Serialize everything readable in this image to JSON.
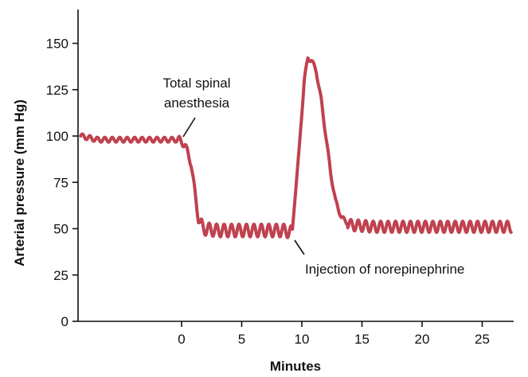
{
  "chart_data": {
    "type": "line",
    "title": "",
    "xlabel": "Minutes",
    "ylabel": "Arterial pressure (mm Hg)",
    "xlim": [
      -8.5,
      27.8
    ],
    "ylim": [
      0,
      170
    ],
    "x_ticks": [
      0,
      5,
      10,
      15,
      20,
      25
    ],
    "y_ticks": [
      0,
      25,
      50,
      75,
      100,
      125,
      150
    ],
    "grid": false,
    "legend": "none",
    "series_color": "#c0414f",
    "series": [
      {
        "x": [
          -8.4,
          -7,
          -5,
          -3,
          -1,
          -0.2,
          0.3,
          0.8,
          1.1,
          1.4,
          1.8,
          3,
          5,
          7,
          8.5,
          9.2,
          9.8,
          10.2,
          10.5,
          10.8,
          11.2,
          11.6,
          12,
          12.4,
          12.8,
          13.3,
          14,
          16,
          20,
          24,
          27.4
        ],
        "y": [
          100,
          98,
          98,
          98,
          98,
          98,
          95,
          85,
          70,
          55,
          50,
          49,
          49,
          49,
          49,
          48,
          95,
          130,
          142,
          141,
          135,
          120,
          100,
          80,
          65,
          56,
          52,
          51,
          51,
          51,
          51
        ]
      }
    ],
    "annotations": [
      {
        "text": [
          "Total spinal",
          "anesthesia"
        ],
        "point": [
          0,
          98
        ]
      },
      {
        "text": [
          "Injection of norepinephrine"
        ],
        "point": [
          9.3,
          46
        ]
      }
    ]
  }
}
